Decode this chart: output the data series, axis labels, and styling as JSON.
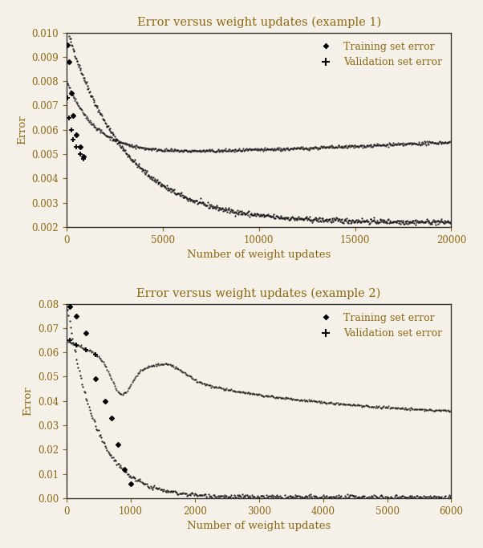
{
  "fig_width": 6.02,
  "fig_height": 6.83,
  "background_color": "#f5f0e8",
  "text_color": "#8B6914",
  "plot1": {
    "title": "Error versus weight updates (example 1)",
    "xlabel": "Number of weight updates",
    "ylabel": "Error",
    "xlim": [
      0,
      20000
    ],
    "ylim": [
      0.002,
      0.01
    ],
    "xticks": [
      0,
      5000,
      10000,
      15000,
      20000
    ],
    "yticks": [
      0.002,
      0.003,
      0.004,
      0.005,
      0.006,
      0.007,
      0.008,
      0.009,
      0.01
    ],
    "legend_labels": [
      "Training set error",
      "Validation set error"
    ],
    "train_color": "#1a1a1a",
    "val_color": "#1a1a1a"
  },
  "plot2": {
    "title": "Error versus weight updates (example 2)",
    "xlabel": "Number of weight updates",
    "ylabel": "Error",
    "xlim": [
      0,
      6000
    ],
    "ylim": [
      0,
      0.08
    ],
    "xticks": [
      0,
      1000,
      2000,
      3000,
      4000,
      5000,
      6000
    ],
    "yticks": [
      0,
      0.01,
      0.02,
      0.03,
      0.04,
      0.05,
      0.06,
      0.07,
      0.08
    ],
    "legend_labels": [
      "Training set error",
      "Validation set error"
    ],
    "train_color": "#1a1a1a",
    "val_color": "#1a1a1a"
  }
}
